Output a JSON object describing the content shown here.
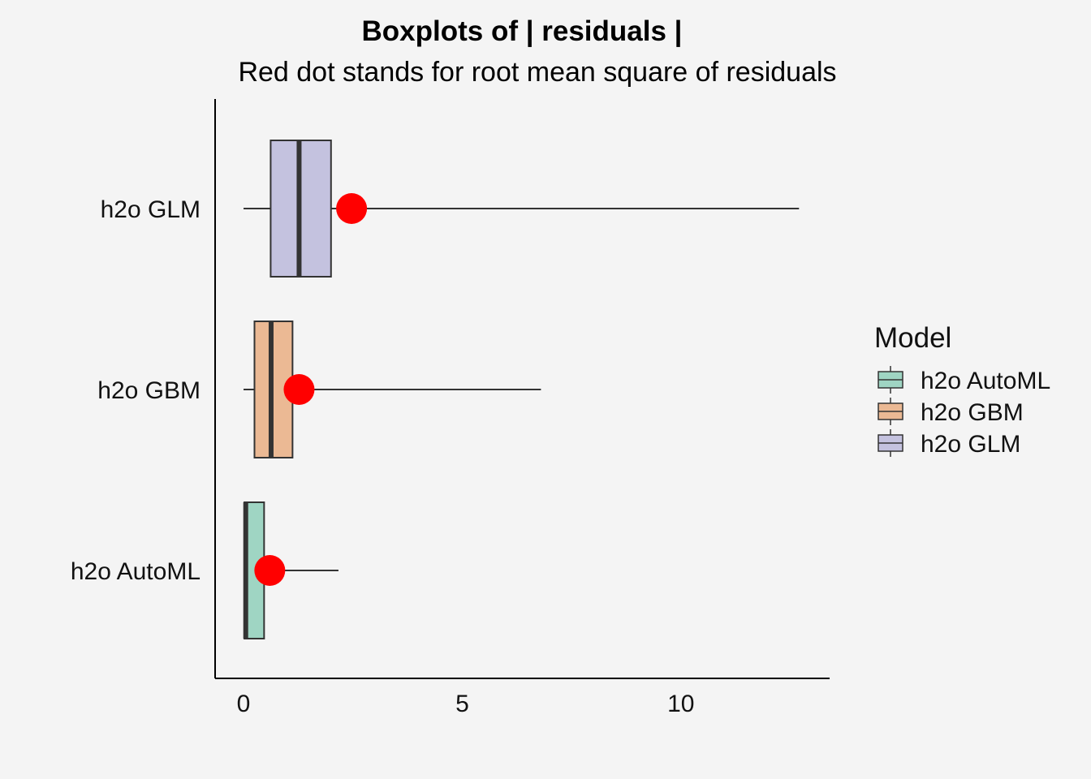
{
  "chart_data": {
    "type": "boxplot",
    "title": "Boxplots of | residuals |",
    "subtitle": "Red dot stands for root mean square of residuals",
    "xlabel": "",
    "ylabel": "",
    "xlim": [
      -0.65,
      13.4
    ],
    "x_ticks": [
      0,
      5,
      10
    ],
    "grid": false,
    "orientation": "horizontal",
    "categories": [
      "h2o AutoML",
      "h2o GBM",
      "h2o GLM"
    ],
    "series": [
      {
        "name": "h2o AutoML",
        "color": "#9fd5c3",
        "min": 0.0,
        "q1": 0.02,
        "median": 0.05,
        "q3": 0.47,
        "max": 2.17,
        "rms": 0.6
      },
      {
        "name": "h2o GBM",
        "color": "#ebb994",
        "min": 0.0,
        "q1": 0.25,
        "median": 0.63,
        "q3": 1.12,
        "max": 6.8,
        "rms": 1.27
      },
      {
        "name": "h2o GLM",
        "color": "#c4c2df",
        "min": 0.0,
        "q1": 0.62,
        "median": 1.27,
        "q3": 2.0,
        "max": 12.7,
        "rms": 2.47
      }
    ],
    "rms_color": "#ff0000",
    "legend": {
      "title": "Model",
      "position": "right"
    }
  }
}
